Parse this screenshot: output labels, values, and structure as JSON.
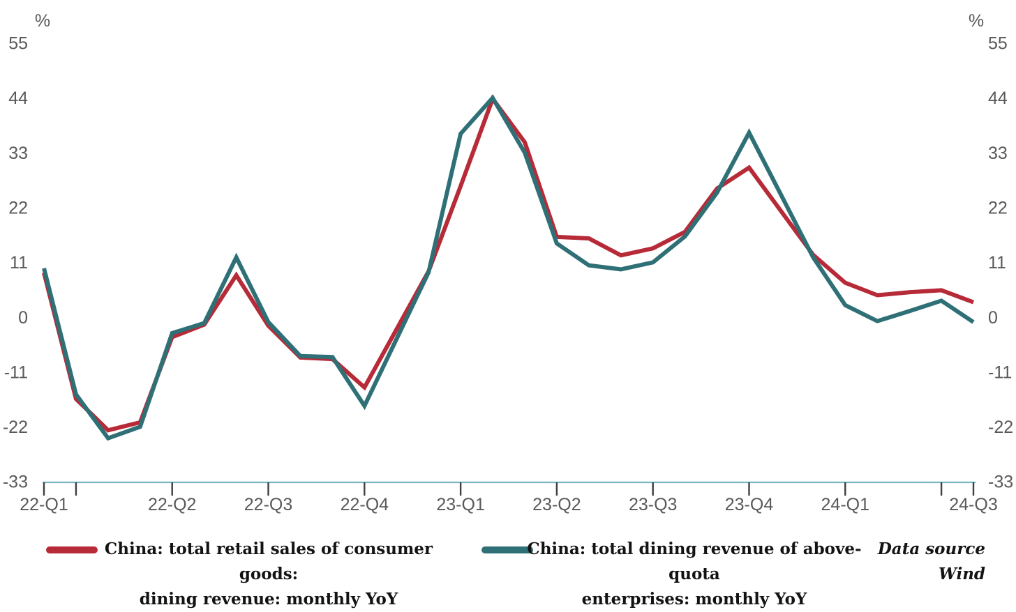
{
  "chart_data": {
    "type": "line",
    "title": "",
    "unit_label": "%",
    "grid": false,
    "legend_position": "bottom",
    "ylim": [
      -33,
      55
    ],
    "y_ticks": [
      55,
      44,
      33,
      22,
      11,
      0,
      -11,
      -22,
      -33
    ],
    "x_months": [
      "2022-02",
      "2022-03",
      "2022-04",
      "2022-05",
      "2022-06",
      "2022-07",
      "2022-08",
      "2022-09",
      "2022-10",
      "2022-11",
      "2022-12",
      "2023-02",
      "2023-03",
      "2023-04",
      "2023-05",
      "2023-06",
      "2023-07",
      "2023-08",
      "2023-09",
      "2023-10",
      "2023-11",
      "2023-12",
      "2024-02",
      "2024-03",
      "2024-04",
      "2024-05",
      "2024-06",
      "2024-07"
    ],
    "x_tick_labels": [
      {
        "m": 0,
        "label": "22-Q1"
      },
      {
        "m": 1,
        "label": ""
      },
      {
        "m": 4,
        "label": "22-Q2"
      },
      {
        "m": 7,
        "label": "22-Q3"
      },
      {
        "m": 10,
        "label": "22-Q4"
      },
      {
        "m": 13,
        "label": "23-Q1"
      },
      {
        "m": 16,
        "label": "23-Q2"
      },
      {
        "m": 19,
        "label": "23-Q3"
      },
      {
        "m": 22,
        "label": "23-Q4"
      },
      {
        "m": 25,
        "label": "24-Q1"
      },
      {
        "m": 28,
        "label": ""
      },
      {
        "m": 29,
        "label": "24-Q3"
      }
    ],
    "series": [
      {
        "name": "China: total retail sales of consumer goods: dining revenue: monthly YoY",
        "color": "#b72a38",
        "values": [
          8.9,
          -16.4,
          -22.7,
          -21.1,
          -4.0,
          -1.5,
          8.4,
          -1.7,
          -8.1,
          -8.4,
          -14.1,
          9.2,
          26.3,
          43.8,
          35.1,
          16.1,
          15.8,
          12.4,
          13.8,
          17.1,
          25.8,
          30.0,
          12.5,
          6.9,
          4.4,
          5.0,
          5.4,
          3.0
        ]
      },
      {
        "name": "China: total dining revenue of above-quota enterprises: monthly YoY",
        "color": "#2f7077",
        "values": [
          9.8,
          -15.5,
          -24.3,
          -22.0,
          -3.2,
          -1.2,
          12.0,
          -1.0,
          -7.8,
          -8.0,
          -17.8,
          9.0,
          36.8,
          44.0,
          33.0,
          14.8,
          10.4,
          9.6,
          11.0,
          16.2,
          25.0,
          37.0,
          12.0,
          2.4,
          -0.8,
          1.2,
          3.3,
          -1.0
        ]
      }
    ],
    "axis_color": "#79b7c3",
    "tick_color": "#3f3f3f",
    "label_color": "#595959"
  },
  "legend": {
    "items": [
      {
        "line1": "China: total retail sales of consumer goods:",
        "line2": "dining revenue: monthly YoY",
        "color": "#b72a38"
      },
      {
        "line1": "China: total dining revenue of above-quota",
        "line2": "enterprises: monthly YoY",
        "color": "#2f7077"
      }
    ]
  },
  "source": {
    "line1": "Data source",
    "line2": "Wind"
  }
}
